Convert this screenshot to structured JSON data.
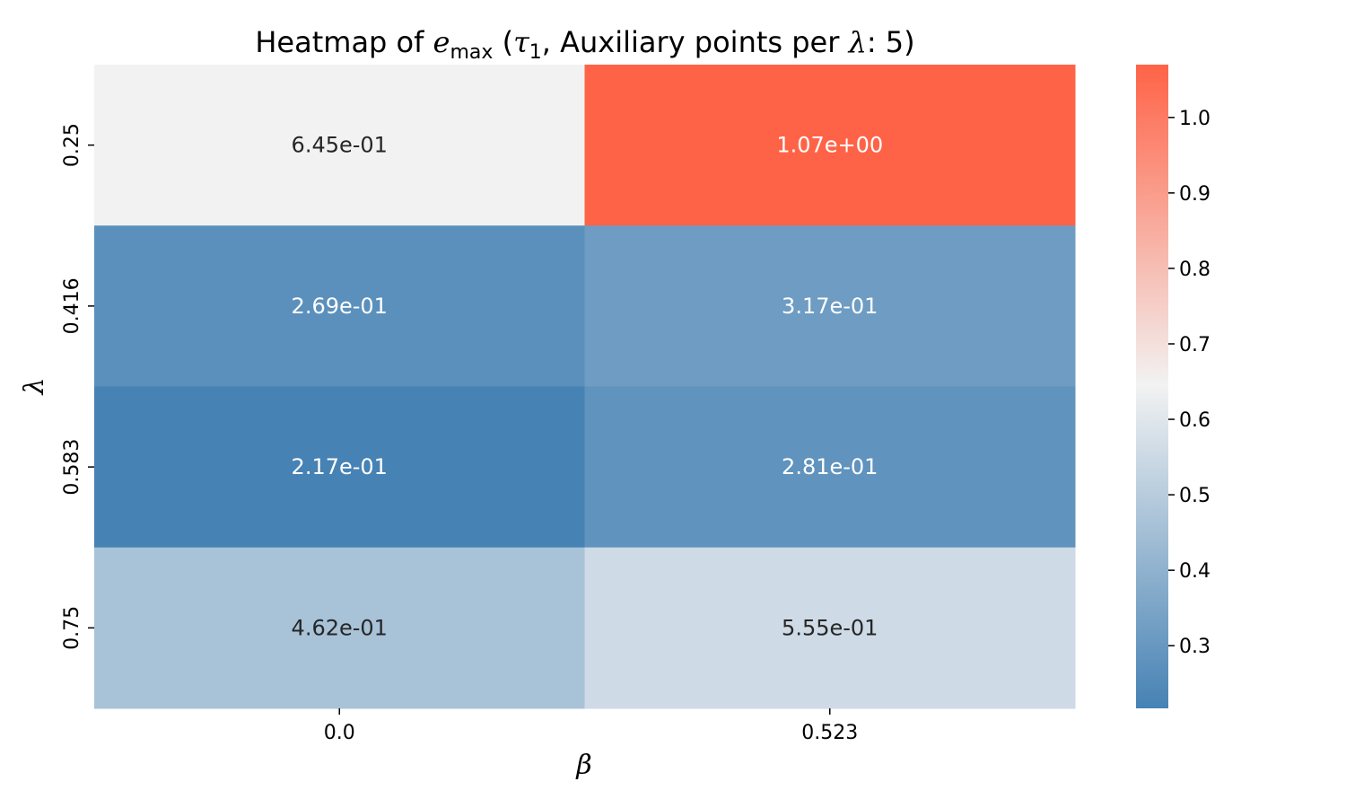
{
  "chart_data": {
    "type": "heatmap",
    "title_parts": {
      "prefix": "Heatmap of ",
      "var": "e",
      "var_sub": "max",
      "open": " (",
      "tau": "τ",
      "tau_sub": "1",
      "middle": ", Auxiliary points per ",
      "lambda": "λ",
      "suffix": ": 5)"
    },
    "xlabel": "β",
    "ylabel": "λ",
    "x_categories": [
      "0.0",
      "0.523"
    ],
    "y_categories": [
      "0.25",
      "0.416",
      "0.583",
      "0.75"
    ],
    "values": [
      [
        0.645,
        1.07
      ],
      [
        0.269,
        0.317
      ],
      [
        0.217,
        0.281
      ],
      [
        0.462,
        0.555
      ]
    ],
    "cell_labels": [
      [
        "6.45e-01",
        "1.07e+00"
      ],
      [
        "2.69e-01",
        "3.17e-01"
      ],
      [
        "2.17e-01",
        "2.81e-01"
      ],
      [
        "4.62e-01",
        "5.55e-01"
      ]
    ],
    "colorbar": {
      "min": 0.217,
      "center": 0.645,
      "max": 1.07,
      "ticks": [
        "0.3",
        "0.4",
        "0.5",
        "0.6",
        "0.7",
        "0.8",
        "0.9",
        "1.0"
      ],
      "low_color": "#4682b4",
      "mid_color": "#f2f2f2",
      "high_color": "#ff6347"
    }
  }
}
